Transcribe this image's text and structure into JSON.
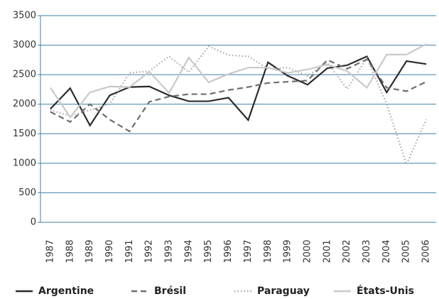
{
  "chart_data": {
    "type": "line",
    "categories": [
      "1987",
      "1988",
      "1989",
      "1990",
      "1991",
      "1992",
      "1993",
      "1994",
      "1995",
      "1996",
      "1997",
      "1998",
      "1999",
      "2000",
      "2001",
      "2002",
      "2003",
      "2004",
      "2005",
      "2006"
    ],
    "series": [
      {
        "name": "Argentine",
        "color": "#2b2b2b",
        "dash": "solid",
        "values": [
          1920,
          2270,
          1640,
          2150,
          2290,
          2300,
          2150,
          2050,
          2050,
          2110,
          1730,
          2710,
          2480,
          2330,
          2610,
          2660,
          2810,
          2200,
          2730,
          2680
        ]
      },
      {
        "name": "Brésil",
        "color": "#6e6e6e",
        "dash": "dashed",
        "values": [
          1870,
          1700,
          2000,
          1740,
          1540,
          2040,
          2130,
          2170,
          2170,
          2240,
          2290,
          2360,
          2380,
          2400,
          2750,
          2600,
          2760,
          2280,
          2220,
          2380
        ]
      },
      {
        "name": "Paraguay",
        "color": "#a8a8a8",
        "dash": "dotted",
        "values": [
          1900,
          1800,
          1900,
          2000,
          2530,
          2560,
          2810,
          2540,
          2980,
          2830,
          2810,
          2600,
          2620,
          2480,
          2700,
          2260,
          2780,
          2000,
          980,
          1740
        ]
      },
      {
        "name": "États-Unis",
        "color": "#c9c9c9",
        "dash": "solid",
        "values": [
          2280,
          1780,
          2200,
          2300,
          2290,
          2550,
          2190,
          2790,
          2370,
          2510,
          2620,
          2620,
          2530,
          2590,
          2670,
          2560,
          2280,
          2840,
          2840,
          3020
        ]
      }
    ],
    "ylim": [
      0,
      3500
    ],
    "yticks": [
      0,
      500,
      1000,
      1500,
      2000,
      2500,
      3000,
      3500
    ],
    "grid": true,
    "grid_color": "#3f7fa6",
    "legend": "bottom"
  }
}
